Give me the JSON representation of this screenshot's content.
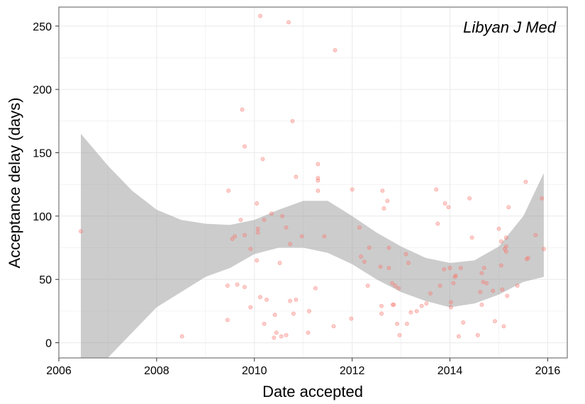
{
  "chart_data": {
    "type": "scatter",
    "annotation": "Libyan J Med",
    "xlabel": "Date accepted",
    "ylabel": "Acceptance delay (days)",
    "xlim": [
      2006.0,
      2016.4
    ],
    "ylim": [
      -12,
      265
    ],
    "x_ticks": [
      2006,
      2008,
      2010,
      2012,
      2014,
      2016
    ],
    "x_tick_labels": [
      "2006",
      "2008",
      "2010",
      "2012",
      "2014",
      "2016"
    ],
    "y_ticks": [
      0,
      50,
      100,
      150,
      200,
      250
    ],
    "y_tick_labels": [
      "0",
      "50",
      "100",
      "150",
      "200",
      "250"
    ],
    "grid": true,
    "colors": {
      "points": "#f8766d",
      "band": "#999999",
      "grid": "#ebebeb",
      "border": "#7f7f7f"
    },
    "series": [
      {
        "values": [
          [
            2006.45,
            88
          ],
          [
            2008.52,
            5
          ],
          [
            2009.45,
            45
          ],
          [
            2009.45,
            18
          ],
          [
            2009.47,
            120
          ],
          [
            2009.55,
            82
          ],
          [
            2009.6,
            84
          ],
          [
            2009.65,
            46
          ],
          [
            2009.72,
            97
          ],
          [
            2009.75,
            184
          ],
          [
            2009.8,
            155
          ],
          [
            2009.8,
            85
          ],
          [
            2009.8,
            44
          ],
          [
            2009.92,
            74
          ],
          [
            2009.92,
            28
          ],
          [
            2010.05,
            110
          ],
          [
            2010.05,
            65
          ],
          [
            2010.07,
            90
          ],
          [
            2010.07,
            87
          ],
          [
            2010.12,
            36
          ],
          [
            2010.12,
            258
          ],
          [
            2010.17,
            145
          ],
          [
            2010.2,
            97
          ],
          [
            2010.2,
            15
          ],
          [
            2010.25,
            34
          ],
          [
            2010.35,
            102
          ],
          [
            2010.4,
            4
          ],
          [
            2010.42,
            22
          ],
          [
            2010.45,
            8
          ],
          [
            2010.52,
            63
          ],
          [
            2010.55,
            5
          ],
          [
            2010.57,
            100
          ],
          [
            2010.65,
            91
          ],
          [
            2010.65,
            6
          ],
          [
            2010.7,
            253
          ],
          [
            2010.73,
            78
          ],
          [
            2010.73,
            33
          ],
          [
            2010.78,
            175
          ],
          [
            2010.8,
            23
          ],
          [
            2010.85,
            131
          ],
          [
            2010.85,
            34
          ],
          [
            2010.97,
            84
          ],
          [
            2011.1,
            8
          ],
          [
            2011.12,
            25
          ],
          [
            2011.25,
            43
          ],
          [
            2011.3,
            141
          ],
          [
            2011.3,
            130
          ],
          [
            2011.3,
            128
          ],
          [
            2011.3,
            120
          ],
          [
            2011.43,
            84
          ],
          [
            2011.62,
            13
          ],
          [
            2011.65,
            231
          ],
          [
            2011.98,
            19
          ],
          [
            2012.0,
            121
          ],
          [
            2012.15,
            91
          ],
          [
            2012.18,
            68
          ],
          [
            2012.25,
            64
          ],
          [
            2012.32,
            45
          ],
          [
            2012.35,
            75
          ],
          [
            2012.58,
            60
          ],
          [
            2012.6,
            29
          ],
          [
            2012.6,
            23
          ],
          [
            2012.62,
            120
          ],
          [
            2012.65,
            106
          ],
          [
            2012.72,
            112
          ],
          [
            2012.75,
            75
          ],
          [
            2012.75,
            59
          ],
          [
            2012.82,
            47
          ],
          [
            2012.83,
            30
          ],
          [
            2012.85,
            30
          ],
          [
            2012.88,
            45
          ],
          [
            2012.92,
            15
          ],
          [
            2012.95,
            43
          ],
          [
            2012.97,
            6
          ],
          [
            2013.1,
            70
          ],
          [
            2013.12,
            15
          ],
          [
            2013.15,
            63
          ],
          [
            2013.2,
            24
          ],
          [
            2013.32,
            25
          ],
          [
            2013.42,
            29
          ],
          [
            2013.52,
            31
          ],
          [
            2013.6,
            39
          ],
          [
            2013.72,
            121
          ],
          [
            2013.75,
            94
          ],
          [
            2013.8,
            45
          ],
          [
            2013.88,
            58
          ],
          [
            2013.9,
            110
          ],
          [
            2013.97,
            107
          ],
          [
            2014.0,
            59
          ],
          [
            2014.02,
            32
          ],
          [
            2014.02,
            28
          ],
          [
            2014.07,
            47
          ],
          [
            2014.1,
            52
          ],
          [
            2014.12,
            53
          ],
          [
            2014.18,
            5
          ],
          [
            2014.22,
            59
          ],
          [
            2014.27,
            16
          ],
          [
            2014.4,
            114
          ],
          [
            2014.45,
            83
          ],
          [
            2014.57,
            6
          ],
          [
            2014.62,
            40
          ],
          [
            2014.65,
            30
          ],
          [
            2014.65,
            55
          ],
          [
            2014.68,
            48
          ],
          [
            2014.7,
            59
          ],
          [
            2014.75,
            47
          ],
          [
            2014.88,
            41
          ],
          [
            2014.92,
            17
          ],
          [
            2015.0,
            90
          ],
          [
            2015.05,
            80
          ],
          [
            2015.05,
            61
          ],
          [
            2015.07,
            42
          ],
          [
            2015.1,
            13
          ],
          [
            2015.12,
            74
          ],
          [
            2015.15,
            83
          ],
          [
            2015.15,
            76
          ],
          [
            2015.15,
            72
          ],
          [
            2015.17,
            37
          ],
          [
            2015.2,
            107
          ],
          [
            2015.38,
            45
          ],
          [
            2015.55,
            127
          ],
          [
            2015.57,
            66
          ],
          [
            2015.6,
            67
          ],
          [
            2015.75,
            85
          ],
          [
            2015.88,
            114
          ],
          [
            2015.92,
            74
          ]
        ]
      }
    ],
    "smooth_band": {
      "x": [
        2006.45,
        2007.0,
        2007.5,
        2008.0,
        2008.5,
        2009.0,
        2009.5,
        2010.0,
        2010.5,
        2011.0,
        2011.5,
        2012.0,
        2012.5,
        2013.0,
        2013.5,
        2014.0,
        2014.5,
        2015.0,
        2015.5,
        2015.92
      ],
      "upper": [
        165,
        140,
        120,
        105,
        97,
        94,
        93,
        97,
        105,
        112,
        112,
        100,
        87,
        76,
        67,
        63,
        65,
        76,
        100,
        134
      ],
      "lower": [
        -12,
        -12,
        8,
        28,
        40,
        52,
        59,
        70,
        75,
        75,
        71,
        62,
        50,
        40,
        33,
        28,
        31,
        38,
        48,
        52
      ]
    }
  }
}
